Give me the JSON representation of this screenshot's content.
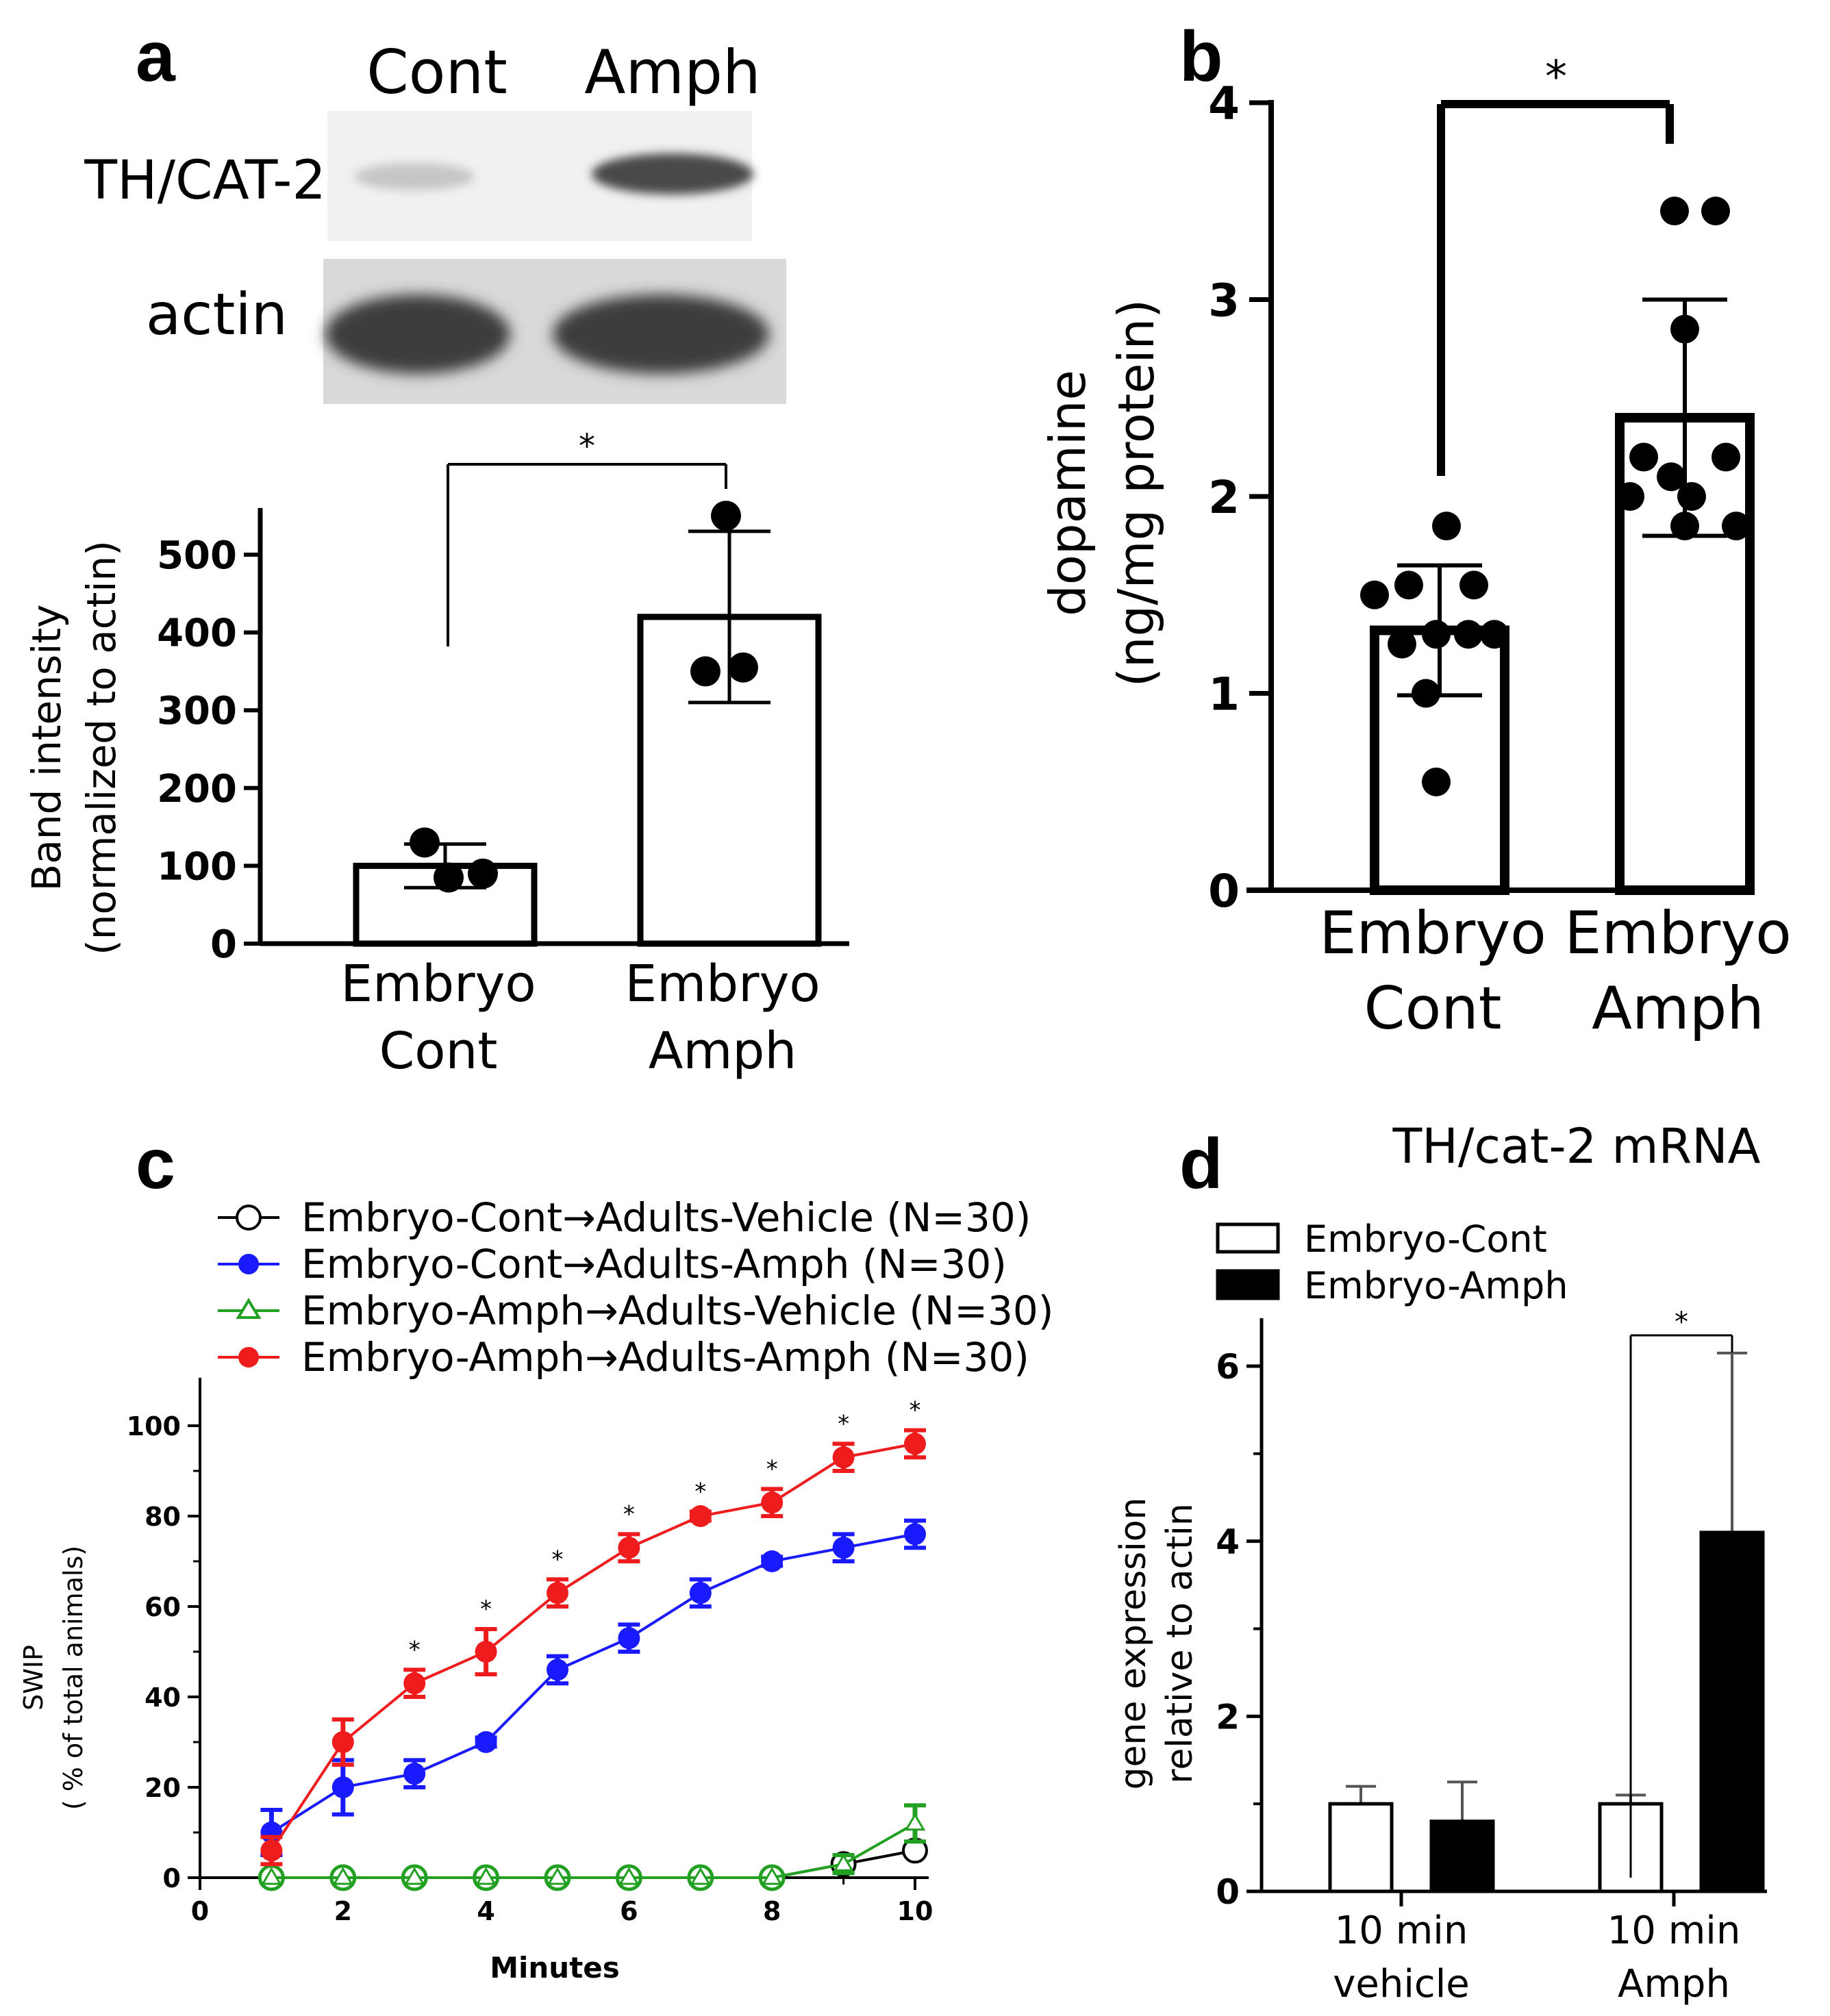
{
  "panel_a": {
    "letter": "a",
    "blot": {
      "lanes": [
        "Cont",
        "Amph"
      ],
      "rows": [
        "TH/CAT-2",
        "actin"
      ]
    },
    "sig": "*"
  },
  "panel_b": {
    "letter": "b",
    "sig": "*"
  },
  "panel_c": {
    "letter": "c"
  },
  "panel_d": {
    "letter": "d",
    "sig": "*"
  },
  "chart_data": [
    {
      "id": "a",
      "type": "bar",
      "title": "",
      "ylabel": [
        "Band intensity",
        "(normalized to actin)"
      ],
      "categories": [
        [
          "Embryo",
          "Cont"
        ],
        [
          "Embryo",
          "Amph"
        ]
      ],
      "ylim": [
        0,
        500
      ],
      "yticks": [
        0,
        100,
        200,
        300,
        400,
        500
      ],
      "values": [
        100,
        420
      ],
      "error": [
        28,
        110
      ],
      "points": [
        [
          130,
          85,
          90
        ],
        [
          550,
          350,
          355
        ]
      ],
      "bar_color": "#ffffff",
      "significance": "*"
    },
    {
      "id": "b",
      "type": "bar",
      "title": "",
      "ylabel": [
        "dopamine",
        "(ng/mg protein)"
      ],
      "categories": [
        [
          "Embryo",
          "Cont"
        ],
        [
          "Embryo",
          "Amph"
        ]
      ],
      "ylim": [
        0,
        4
      ],
      "yticks": [
        0,
        1,
        2,
        3,
        4
      ],
      "values": [
        1.32,
        2.4
      ],
      "error": [
        0.33,
        0.6
      ],
      "points": [
        [
          1.85,
          1.55,
          1.55,
          1.5,
          1.3,
          1.3,
          1.25,
          1.3,
          1.0,
          0.55
        ],
        [
          3.45,
          3.45,
          2.85,
          2.2,
          2.2,
          2.1,
          2.0,
          2.0,
          1.85,
          1.85
        ]
      ],
      "bar_color": "#ffffff",
      "significance": "*"
    },
    {
      "id": "c",
      "type": "line",
      "xlabel": "Minutes",
      "ylabel": [
        "SWIP",
        "( % of total animals)"
      ],
      "xlim": [
        0,
        10
      ],
      "ylim": [
        0,
        100
      ],
      "xticks": [
        0,
        2,
        4,
        6,
        8,
        10
      ],
      "yticks": [
        0,
        20,
        40,
        60,
        80,
        100
      ],
      "x": [
        1,
        2,
        3,
        4,
        5,
        6,
        7,
        8,
        9,
        10
      ],
      "legend": "top",
      "series": [
        {
          "name": "Embryo-Cont→Adults-Vehicle (N=30)",
          "color": "#000000",
          "marker": "open-circle",
          "values": [
            0,
            0,
            0,
            0,
            0,
            0,
            0,
            0,
            3,
            6
          ],
          "error": [
            0,
            0,
            0,
            0,
            0,
            0,
            0,
            0,
            1,
            1
          ]
        },
        {
          "name": "Embryo-Cont→Adults-Amph (N=30)",
          "color": "#1a1aff",
          "marker": "filled-circle",
          "values": [
            10,
            20,
            23,
            30,
            46,
            53,
            63,
            70,
            73,
            76
          ],
          "error": [
            5,
            6,
            3,
            1,
            3,
            3,
            3,
            1,
            3,
            3
          ]
        },
        {
          "name": "Embryo-Amph→Adults-Vehicle (N=30)",
          "color": "#22a022",
          "marker": "open-triangle",
          "values": [
            0,
            0,
            0,
            0,
            0,
            0,
            0,
            0,
            3,
            12
          ],
          "error": [
            0,
            0,
            0,
            0,
            0,
            0,
            0,
            0,
            2,
            4
          ]
        },
        {
          "name": "Embryo-Amph→Adults-Amph (N=30)",
          "color": "#ee1c1c",
          "marker": "filled-circle",
          "values": [
            6,
            30,
            43,
            50,
            63,
            73,
            80,
            83,
            93,
            96
          ],
          "error": [
            3,
            5,
            3,
            5,
            3,
            3,
            1,
            3,
            3,
            3
          ]
        }
      ],
      "significance_x": [
        3,
        4,
        5,
        6,
        7,
        8,
        9,
        10
      ],
      "significance": "*"
    },
    {
      "id": "d",
      "type": "bar",
      "title": "TH/cat-2 mRNA",
      "ylabel": [
        "gene expression",
        "relative to actin"
      ],
      "categories": [
        [
          "10 min",
          "vehicle"
        ],
        [
          "10 min",
          "Amph"
        ]
      ],
      "ylim": [
        0,
        6
      ],
      "yticks": [
        0,
        2,
        4,
        6
      ],
      "legend": "top-left",
      "series": [
        {
          "name": "Embryo-Cont",
          "color": "#ffffff",
          "values": [
            1.0,
            1.0
          ],
          "error": [
            0.2,
            0.1
          ]
        },
        {
          "name": "Embryo-Amph",
          "color": "#000000",
          "values": [
            0.8,
            4.1
          ],
          "error": [
            0.45,
            2.05
          ]
        }
      ],
      "significance": "*"
    }
  ]
}
